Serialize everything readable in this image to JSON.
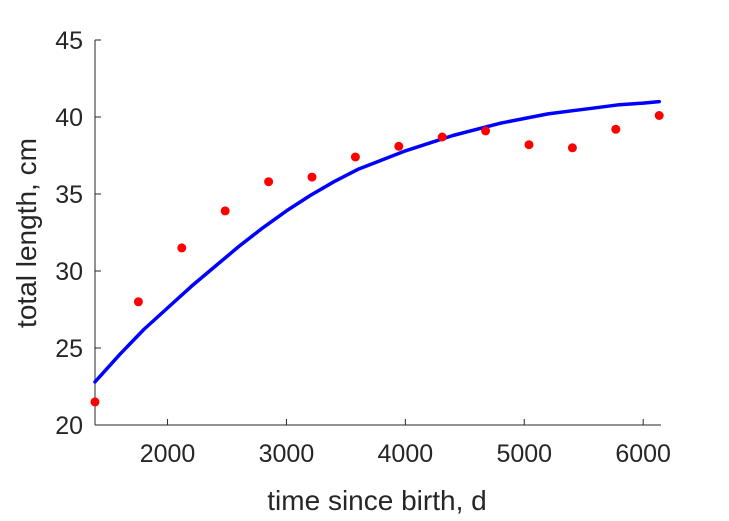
{
  "chart_data": {
    "type": "scatter",
    "xlabel": "time since birth, d",
    "ylabel": "total length, cm",
    "xlim": [
      1390,
      6150
    ],
    "ylim": [
      20,
      45
    ],
    "xticks": [
      2000,
      3000,
      4000,
      5000,
      6000
    ],
    "yticks": [
      20,
      25,
      30,
      35,
      40,
      45
    ],
    "grid": false,
    "legend": "none",
    "series": [
      {
        "kind": "points",
        "color": "#ff0000",
        "x": [
          1390,
          1755,
          2120,
          2485,
          2850,
          3215,
          3580,
          3945,
          4310,
          4675,
          5040,
          5405,
          5770,
          6135
        ],
        "y": [
          21.5,
          28.0,
          31.5,
          33.9,
          35.8,
          36.1,
          37.4,
          38.1,
          38.7,
          39.1,
          38.2,
          38.0,
          39.2,
          40.1
        ]
      },
      {
        "kind": "line",
        "color": "#0000ff",
        "x": [
          1390,
          1600,
          1800,
          2000,
          2200,
          2400,
          2600,
          2800,
          3000,
          3200,
          3400,
          3600,
          3800,
          4000,
          4200,
          4400,
          4600,
          4800,
          5000,
          5200,
          5400,
          5600,
          5800,
          6000,
          6135
        ],
        "y": [
          22.8,
          24.6,
          26.2,
          27.6,
          29.0,
          30.3,
          31.6,
          32.8,
          33.9,
          34.9,
          35.8,
          36.6,
          37.2,
          37.8,
          38.3,
          38.8,
          39.2,
          39.6,
          39.9,
          40.2,
          40.4,
          40.6,
          40.8,
          40.9,
          41.0
        ]
      }
    ]
  }
}
